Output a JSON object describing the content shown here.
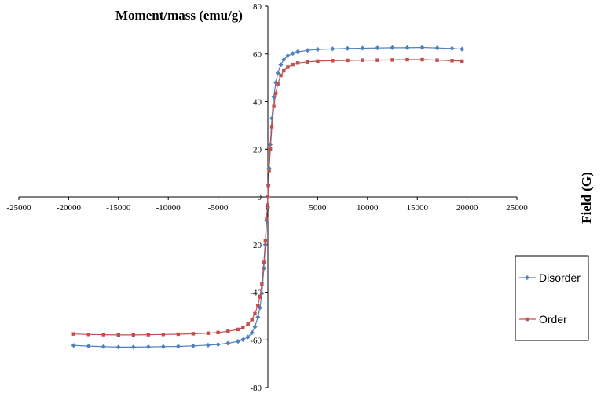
{
  "chart_data": {
    "type": "line",
    "title": "Moment/mass (emu/g)",
    "xlabel": "Field (G)",
    "ylabel": "Moment/mass (emu/g)",
    "xlim": [
      -25000,
      25000
    ],
    "ylim": [
      -80,
      80
    ],
    "x_ticks": [
      "-25000",
      "-20000",
      "-15000",
      "-10000",
      "-5000",
      "0",
      "5000",
      "10000",
      "15000",
      "20000",
      "25000"
    ],
    "y_ticks": [
      "80",
      "60",
      "40",
      "20",
      "0",
      "-20",
      "-40",
      "-60",
      "-80"
    ],
    "grid": false,
    "legend_position": "right",
    "series": [
      {
        "name": "Disorder",
        "color": "#4F81BD",
        "marker": "diamond",
        "points": [
          [
            -19500,
            -62.3
          ],
          [
            -18000,
            -62.6
          ],
          [
            -16500,
            -62.8
          ],
          [
            -15000,
            -63.0
          ],
          [
            -13500,
            -63.0
          ],
          [
            -12000,
            -62.9
          ],
          [
            -10500,
            -62.8
          ],
          [
            -9000,
            -62.7
          ],
          [
            -7500,
            -62.5
          ],
          [
            -6000,
            -62.2
          ],
          [
            -5000,
            -61.9
          ],
          [
            -4000,
            -61.4
          ],
          [
            -3000,
            -60.6
          ],
          [
            -2500,
            -59.9
          ],
          [
            -2000,
            -58.8
          ],
          [
            -1600,
            -57.0
          ],
          [
            -1300,
            -54.5
          ],
          [
            -1000,
            -50.5
          ],
          [
            -800,
            -46.5
          ],
          [
            -600,
            -40.5
          ],
          [
            -400,
            -30.0
          ],
          [
            -250,
            -20.0
          ],
          [
            -120,
            -10.0
          ],
          [
            -50,
            -4.0
          ],
          [
            0,
            0
          ],
          [
            50,
            5.0
          ],
          [
            120,
            12.0
          ],
          [
            250,
            22.0
          ],
          [
            400,
            33.0
          ],
          [
            600,
            42.0
          ],
          [
            800,
            48.0
          ],
          [
            1000,
            52.0
          ],
          [
            1300,
            55.5
          ],
          [
            1600,
            57.6
          ],
          [
            2000,
            59.2
          ],
          [
            2500,
            60.2
          ],
          [
            3000,
            60.9
          ],
          [
            4000,
            61.5
          ],
          [
            5000,
            61.9
          ],
          [
            6500,
            62.1
          ],
          [
            8000,
            62.3
          ],
          [
            9500,
            62.4
          ],
          [
            11000,
            62.5
          ],
          [
            12500,
            62.6
          ],
          [
            14000,
            62.6
          ],
          [
            15500,
            62.7
          ],
          [
            17000,
            62.5
          ],
          [
            18500,
            62.3
          ],
          [
            19500,
            62.0
          ]
        ]
      },
      {
        "name": "Order",
        "color": "#C0504D",
        "marker": "square",
        "points": [
          [
            -19500,
            -57.5
          ],
          [
            -18000,
            -57.7
          ],
          [
            -16500,
            -57.8
          ],
          [
            -15000,
            -57.9
          ],
          [
            -13500,
            -57.9
          ],
          [
            -12000,
            -57.8
          ],
          [
            -10500,
            -57.7
          ],
          [
            -9000,
            -57.6
          ],
          [
            -7500,
            -57.4
          ],
          [
            -6000,
            -57.2
          ],
          [
            -5000,
            -56.9
          ],
          [
            -4000,
            -56.4
          ],
          [
            -3000,
            -55.6
          ],
          [
            -2500,
            -54.8
          ],
          [
            -2000,
            -53.4
          ],
          [
            -1600,
            -51.5
          ],
          [
            -1300,
            -49.0
          ],
          [
            -1000,
            -45.5
          ],
          [
            -800,
            -42.0
          ],
          [
            -600,
            -36.5
          ],
          [
            -400,
            -27.5
          ],
          [
            -250,
            -18.5
          ],
          [
            -120,
            -9.0
          ],
          [
            -50,
            -3.5
          ],
          [
            0,
            0
          ],
          [
            50,
            4.5
          ],
          [
            120,
            11.0
          ],
          [
            250,
            20.0
          ],
          [
            400,
            29.5
          ],
          [
            600,
            38.0
          ],
          [
            800,
            43.5
          ],
          [
            1000,
            47.5
          ],
          [
            1300,
            51.0
          ],
          [
            1600,
            53.0
          ],
          [
            2000,
            54.5
          ],
          [
            2500,
            55.6
          ],
          [
            3000,
            56.2
          ],
          [
            4000,
            56.7
          ],
          [
            5000,
            57.0
          ],
          [
            6500,
            57.2
          ],
          [
            8000,
            57.3
          ],
          [
            9500,
            57.4
          ],
          [
            11000,
            57.4
          ],
          [
            12500,
            57.5
          ],
          [
            14000,
            57.6
          ],
          [
            15500,
            57.6
          ],
          [
            17000,
            57.4
          ],
          [
            18500,
            57.2
          ],
          [
            19500,
            57.0
          ]
        ]
      }
    ]
  }
}
